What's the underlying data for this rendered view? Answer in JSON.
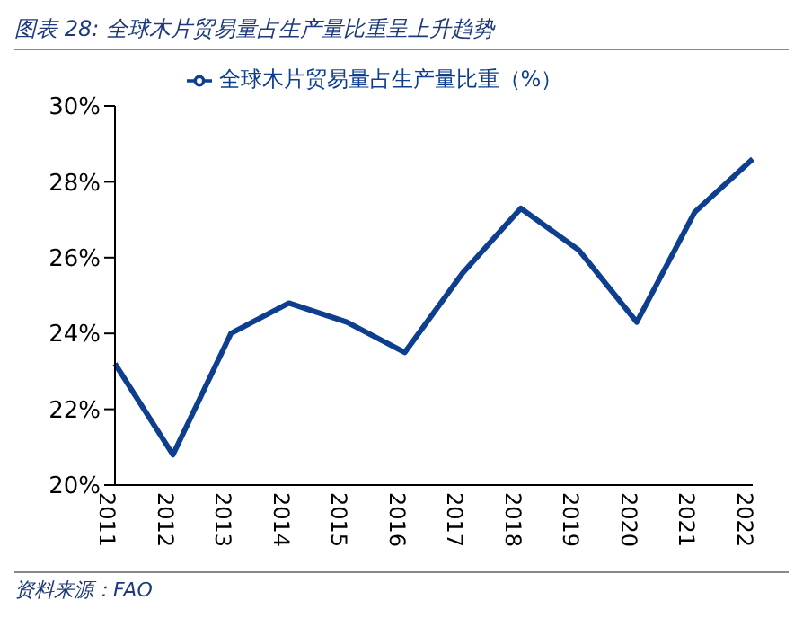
{
  "chart_data": {
    "type": "line",
    "title": "图表 28:  全球木片贸易量占生产量比重呈上升趋势",
    "categories": [
      "2011",
      "2012",
      "2013",
      "2014",
      "2015",
      "2016",
      "2017",
      "2018",
      "2019",
      "2020",
      "2021",
      "2022"
    ],
    "series": [
      {
        "name": "全球木片贸易量占生产量比重（%）",
        "color": "#0e3e8e",
        "values": [
          23.2,
          20.8,
          24.0,
          24.8,
          24.3,
          23.5,
          25.6,
          27.3,
          26.2,
          24.3,
          27.2,
          28.6
        ]
      }
    ],
    "ylim": [
      20,
      30
    ],
    "yticks": [
      {
        "value": 20,
        "label": "20%"
      },
      {
        "value": 22,
        "label": "22%"
      },
      {
        "value": 24,
        "label": "24%"
      },
      {
        "value": 26,
        "label": "26%"
      },
      {
        "value": 28,
        "label": "28%"
      },
      {
        "value": 30,
        "label": "30%"
      }
    ],
    "grid": false,
    "legend": "top",
    "marker": "none",
    "line_style": "solid",
    "annotations": [
      "资料来源：FAO"
    ]
  }
}
